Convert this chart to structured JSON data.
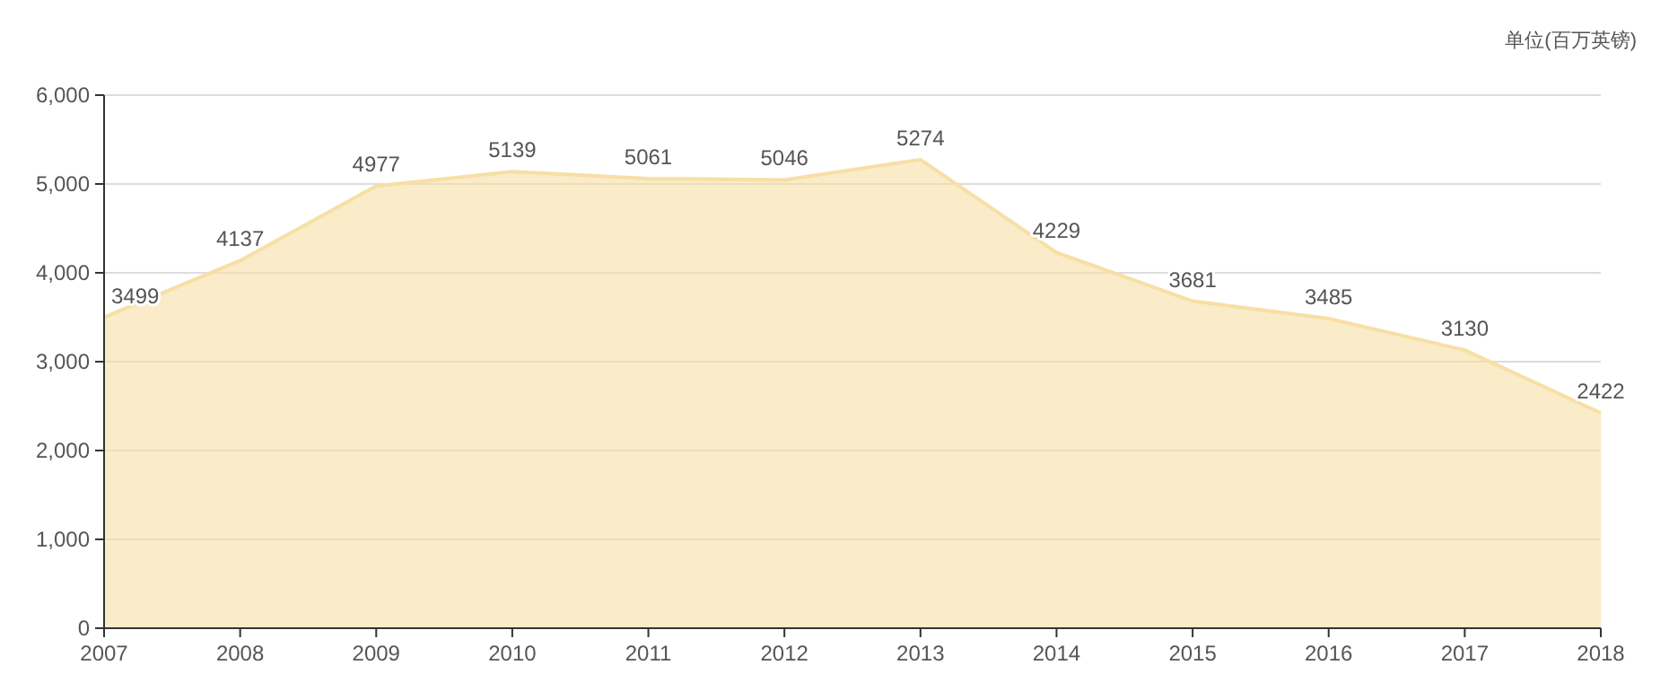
{
  "chart_data": {
    "type": "area",
    "categories": [
      "2007",
      "2008",
      "2009",
      "2010",
      "2011",
      "2012",
      "2013",
      "2014",
      "2015",
      "2016",
      "2017",
      "2018"
    ],
    "series": [
      {
        "color": "#f7dfa5",
        "values": [
          3499,
          4137,
          4977,
          5139,
          5061,
          5046,
          5274,
          4229,
          3681,
          3485,
          3130,
          2422
        ]
      }
    ],
    "ylim": [
      0,
      6000
    ],
    "yticks": [
      {
        "value": 0,
        "label": "0"
      },
      {
        "value": 1000,
        "label": "1,000"
      },
      {
        "value": 2000,
        "label": "2,000"
      },
      {
        "value": 3000,
        "label": "3,000"
      },
      {
        "value": 4000,
        "label": "4,000"
      },
      {
        "value": 5000,
        "label": "5,000"
      },
      {
        "value": 6000,
        "label": "6,000"
      }
    ],
    "grid": "y",
    "data_labels": true,
    "annotations": [
      "单位(百万英镑)"
    ]
  }
}
